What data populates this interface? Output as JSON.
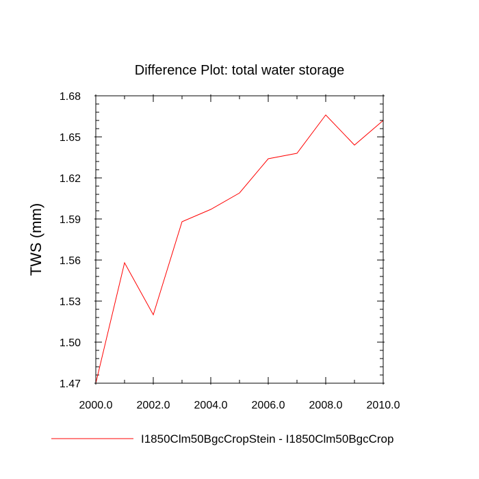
{
  "chart_data": {
    "type": "line",
    "title": "Difference Plot: total water storage",
    "xlabel": "",
    "ylabel": "TWS  (mm)",
    "xlim": [
      2000.0,
      2010.0
    ],
    "ylim": [
      1.47,
      1.68
    ],
    "xticks": [
      "2000.0",
      "2002.0",
      "2004.0",
      "2006.0",
      "2008.0",
      "2010.0"
    ],
    "yticks": [
      "1.47",
      "1.50",
      "1.53",
      "1.56",
      "1.59",
      "1.62",
      "1.65",
      "1.68"
    ],
    "grid": false,
    "legend_position": "bottom",
    "series": [
      {
        "name": "I1850Clm50BgcCropStein - I1850Clm50BgcCrop",
        "color": "#ff0000",
        "x": [
          2000,
          2001,
          2002,
          2003,
          2004,
          2005,
          2006,
          2007,
          2008,
          2009,
          2010
        ],
        "y": [
          1.47,
          1.558,
          1.52,
          1.588,
          1.597,
          1.609,
          1.634,
          1.638,
          1.666,
          1.644,
          1.662
        ]
      }
    ]
  }
}
